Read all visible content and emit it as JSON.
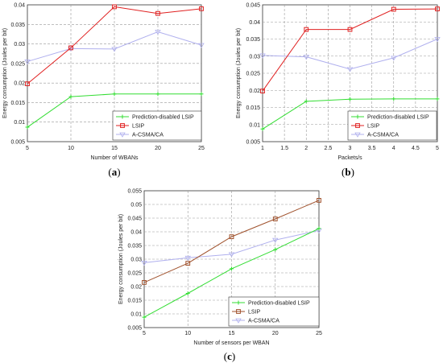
{
  "chart_data": [
    {
      "type": "line",
      "caption_letter": "a",
      "xlabel": "Number of WBANs",
      "ylabel": "Energy consumption (Joules per bit)",
      "x": [
        5,
        10,
        15,
        20,
        25
      ],
      "xticks": [
        "5",
        "10",
        "15",
        "20",
        "25"
      ],
      "xlim": [
        5,
        25
      ],
      "ylim": [
        0.005,
        0.04
      ],
      "yticks": [
        "0.005",
        "0.01",
        "0.015",
        "0.02",
        "0.025",
        "0.03",
        "0.035",
        "0.04"
      ],
      "grid": true,
      "legend_position": "bottom-right",
      "series": [
        {
          "name": "Prediction-disabled LSIP",
          "color": "#33dd33",
          "marker": "plus",
          "values": [
            0.0087,
            0.0165,
            0.0172,
            0.0172,
            0.0172
          ]
        },
        {
          "name": "LSIP",
          "color": "#e02020",
          "marker": "square",
          "values": [
            0.0198,
            0.029,
            0.0395,
            0.0378,
            0.039
          ]
        },
        {
          "name": "A-CSMA/CA",
          "color": "#b0b0ee",
          "marker": "triangle",
          "values": [
            0.0255,
            0.0288,
            0.0287,
            0.0331,
            0.0297
          ]
        }
      ]
    },
    {
      "type": "line",
      "caption_letter": "b",
      "xlabel": "Packets/s",
      "ylabel": "Energy consumption (Joules per bit)",
      "x": [
        1,
        2,
        3,
        4,
        5
      ],
      "xticks": [
        "1",
        "1.5",
        "2",
        "2.5",
        "3",
        "3.5",
        "4",
        "4.5",
        "5"
      ],
      "xlim": [
        1,
        5
      ],
      "ylim": [
        0.005,
        0.045
      ],
      "yticks": [
        "0.005",
        "0.01",
        "0.015",
        "0.02",
        "0.025",
        "0.03",
        "0.035",
        "0.04",
        "0.045"
      ],
      "grid": true,
      "legend_position": "bottom-right",
      "series": [
        {
          "name": "Prediction-disabled LSIP",
          "color": "#33dd33",
          "marker": "plus",
          "values": [
            0.0087,
            0.0168,
            0.0174,
            0.0175,
            0.0175
          ]
        },
        {
          "name": "LSIP",
          "color": "#e02020",
          "marker": "square",
          "values": [
            0.0198,
            0.0378,
            0.0378,
            0.0437,
            0.0438
          ]
        },
        {
          "name": "A-CSMA/CA",
          "color": "#b0b0ee",
          "marker": "triangle",
          "values": [
            0.0302,
            0.0298,
            0.0262,
            0.0295,
            0.035
          ]
        }
      ]
    },
    {
      "type": "line",
      "caption_letter": "c",
      "xlabel": "Number of sensors per WBAN",
      "ylabel": "Energy consumption (Joules per bit)",
      "x": [
        5,
        10,
        15,
        20,
        25
      ],
      "xticks": [
        "5",
        "10",
        "15",
        "20",
        "25"
      ],
      "xlim": [
        5,
        25
      ],
      "ylim": [
        0.005,
        0.055
      ],
      "yticks": [
        "0.005",
        "0.01",
        "0.015",
        "0.02",
        "0.025",
        "0.03",
        "0.035",
        "0.04",
        "0.045",
        "0.05",
        "0.055"
      ],
      "grid": true,
      "legend_position": "bottom-right",
      "series": [
        {
          "name": "Prediction-disabled LSIP",
          "color": "#33dd33",
          "marker": "plus",
          "values": [
            0.0088,
            0.0175,
            0.0265,
            0.0335,
            0.0412
          ]
        },
        {
          "name": "LSIP",
          "color": "#a0522d",
          "marker": "square",
          "values": [
            0.0215,
            0.0285,
            0.0382,
            0.0447,
            0.0515
          ]
        },
        {
          "name": "A-CSMA/CA",
          "color": "#b0b0ee",
          "marker": "triangle",
          "values": [
            0.0287,
            0.0305,
            0.0318,
            0.037,
            0.0405
          ]
        }
      ]
    }
  ]
}
